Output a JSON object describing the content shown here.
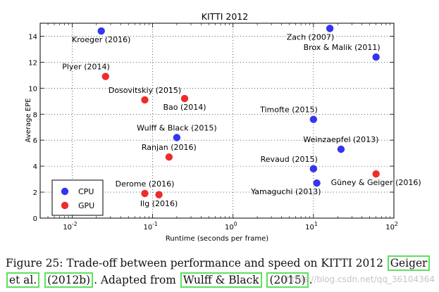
{
  "chart_data": {
    "type": "scatter",
    "title": "KITTI 2012",
    "xlabel": "Runtime (seconds per frame)",
    "ylabel": "Average EPE",
    "xscale": "log",
    "xlim": [
      0.004,
      100
    ],
    "ylim": [
      0,
      15
    ],
    "x_ticks": [
      {
        "value": 0.01,
        "base": "10",
        "exp": "-2"
      },
      {
        "value": 0.1,
        "base": "10",
        "exp": "-1"
      },
      {
        "value": 1,
        "base": "10",
        "exp": "0"
      },
      {
        "value": 10,
        "base": "10",
        "exp": "1"
      },
      {
        "value": 100,
        "base": "10",
        "exp": "2"
      }
    ],
    "y_ticks": [
      0,
      2,
      4,
      6,
      8,
      10,
      12,
      14
    ],
    "grid": true,
    "legend_position": "bottom-left",
    "series": [
      {
        "name": "CPU",
        "color": "#3535f0",
        "points": [
          {
            "label": "Kroeger (2016)",
            "x": 0.023,
            "y": 14.4,
            "anchor": "below"
          },
          {
            "label": "Zach (2007)",
            "x": 16,
            "y": 14.6,
            "anchor": "below-left"
          },
          {
            "label": "Brox & Malik (2011)",
            "x": 60,
            "y": 12.4,
            "anchor": "above-left"
          },
          {
            "label": "Timofte (2015)",
            "x": 10,
            "y": 7.6,
            "anchor": "above-left"
          },
          {
            "label": "Wulff & Black (2015)",
            "x": 0.2,
            "y": 6.2,
            "anchor": "above"
          },
          {
            "label": "Weinzaepfel (2013)",
            "x": 22,
            "y": 5.3,
            "anchor": "above"
          },
          {
            "label": "Revaud (2015)",
            "x": 10,
            "y": 3.8,
            "anchor": "above-left"
          },
          {
            "label": "Yamaguchi (2013)",
            "x": 11,
            "y": 2.7,
            "anchor": "below-left"
          }
        ]
      },
      {
        "name": "GPU",
        "color": "#ee2c2c",
        "points": [
          {
            "label": "Plyer (2014)",
            "x": 0.026,
            "y": 10.9,
            "anchor": "above-left"
          },
          {
            "label": "Dosovitskiy (2015)",
            "x": 0.08,
            "y": 9.1,
            "anchor": "above"
          },
          {
            "label": "Bao (2014)",
            "x": 0.25,
            "y": 9.2,
            "anchor": "below"
          },
          {
            "label": "Ranjan (2016)",
            "x": 0.16,
            "y": 4.7,
            "anchor": "above"
          },
          {
            "label": "Derome (2016)",
            "x": 0.08,
            "y": 1.9,
            "anchor": "above"
          },
          {
            "label": "Ilg (2016)",
            "x": 0.12,
            "y": 1.8,
            "anchor": "below"
          },
          {
            "label": "Güney & Geiger (2016)",
            "x": 60,
            "y": 3.4,
            "anchor": "below"
          }
        ]
      }
    ]
  },
  "caption": {
    "prefix": "Figure 25: Trade-off between performance and speed on KITTI 2012 ",
    "cite1_part1": "Geiger",
    "cite1_part2": "et al.",
    "cite1_part3": "(2012b)",
    "middle": ". Adapted from ",
    "cite2_part1": "Wulff & Black",
    "cite2_part2": "(2015)",
    "suffix": "."
  },
  "watermark": "https://blog.csdn.net/qq_36104364"
}
